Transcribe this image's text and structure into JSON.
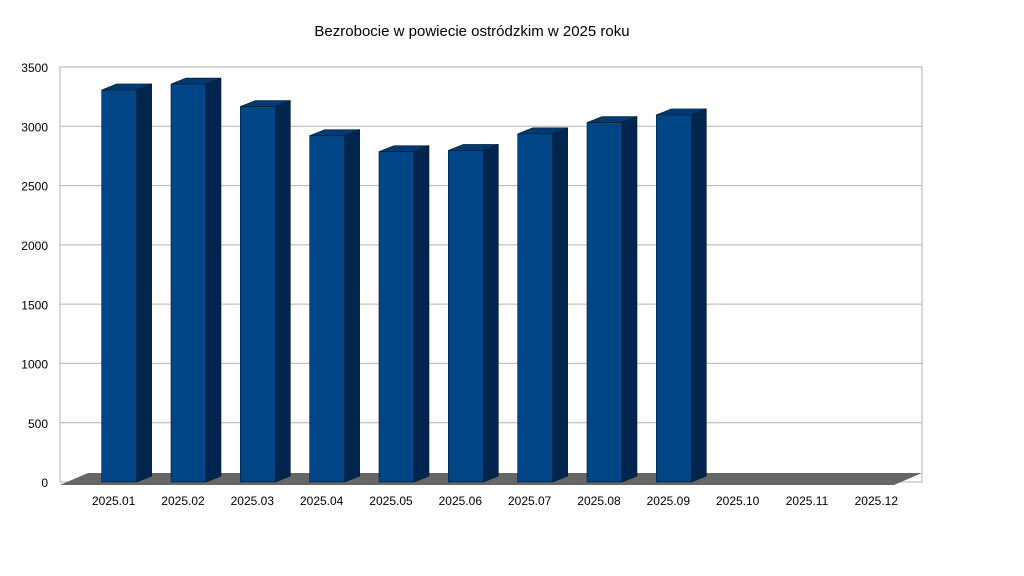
{
  "chart_data": {
    "type": "bar",
    "title": "Bezrobocie w powiecie ostródzkim w 2025 roku",
    "categories": [
      "2025.01",
      "2025.02",
      "2025.03",
      "2025.04",
      "2025.05",
      "2025.06",
      "2025.07",
      "2025.08",
      "2025.09",
      "2025.10",
      "2025.11",
      "2025.12"
    ],
    "values": [
      3340,
      3390,
      3200,
      2955,
      2820,
      2830,
      2970,
      3065,
      3130,
      null,
      null,
      null
    ],
    "color": "#004586",
    "ylim": [
      0,
      3500
    ],
    "yticks": [
      0,
      500,
      1000,
      1500,
      2000,
      2500,
      3000,
      3500
    ],
    "grid": true
  }
}
